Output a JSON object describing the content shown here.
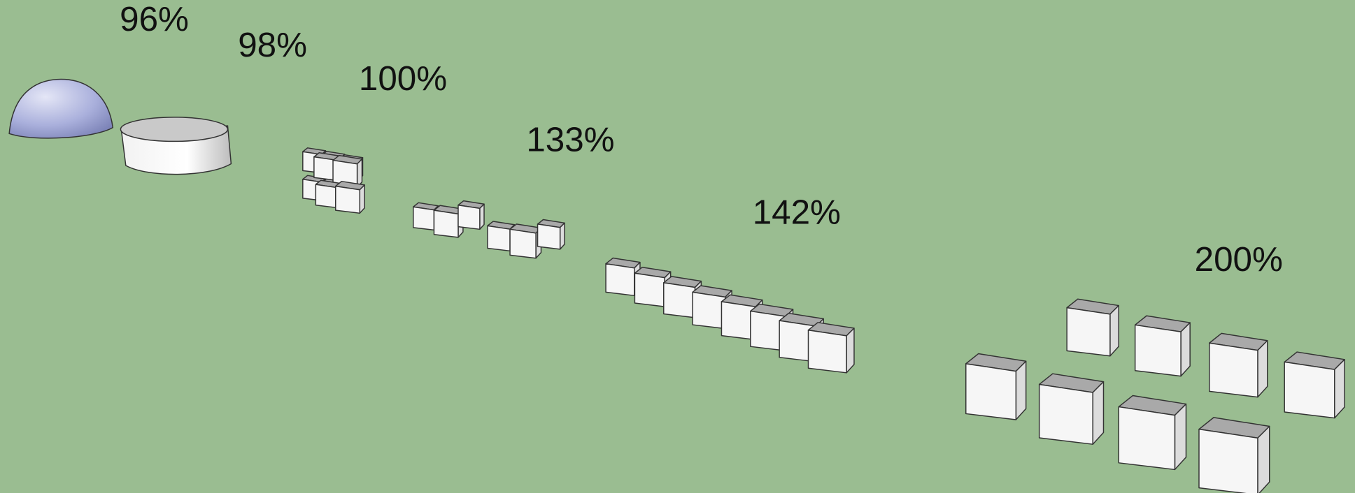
{
  "labels": [
    "96%",
    "98%",
    "100%",
    "133%",
    "142%",
    "200%"
  ]
}
